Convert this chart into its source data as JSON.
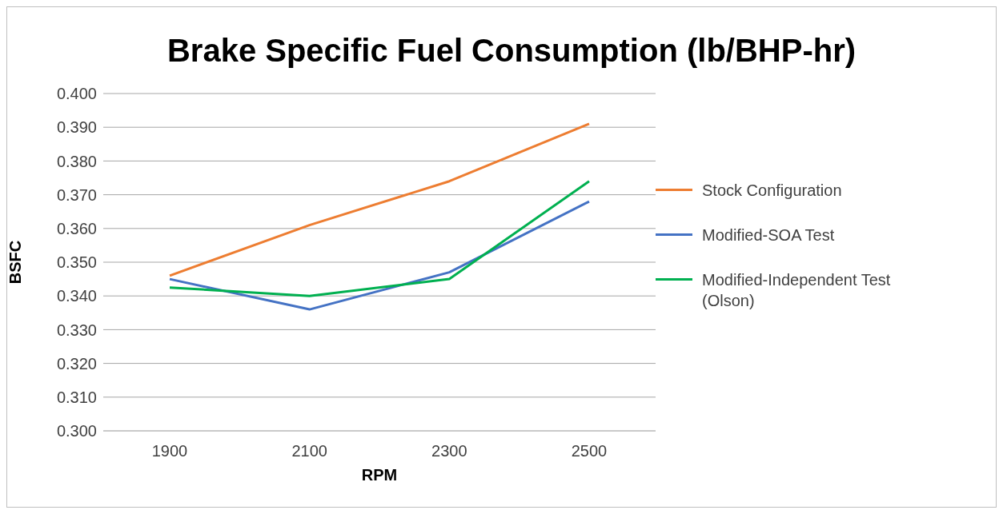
{
  "chart_data": {
    "type": "line",
    "title": "Brake Specific Fuel Consumption (lb/BHP-hr)",
    "xlabel": "RPM",
    "ylabel": "BSFC",
    "categories": [
      "1900",
      "2100",
      "2300",
      "2500"
    ],
    "series": [
      {
        "name": "Stock Configuration",
        "color": "#ed7d31",
        "values": [
          0.346,
          0.361,
          0.374,
          0.391
        ]
      },
      {
        "name": "Modified-SOA Test",
        "color": "#4472c4",
        "values": [
          0.345,
          0.336,
          0.347,
          0.368
        ]
      },
      {
        "name": "Modified-Independent Test (Olson)",
        "color": "#00b050",
        "values": [
          0.3425,
          0.34,
          0.345,
          0.374
        ]
      }
    ],
    "ylim": [
      0.3,
      0.4
    ],
    "yticks": [
      {
        "value": 0.3,
        "label": "0.300"
      },
      {
        "value": 0.31,
        "label": "0.310"
      },
      {
        "value": 0.32,
        "label": "0.320"
      },
      {
        "value": 0.33,
        "label": "0.330"
      },
      {
        "value": 0.34,
        "label": "0.340"
      },
      {
        "value": 0.35,
        "label": "0.350"
      },
      {
        "value": 0.36,
        "label": "0.360"
      },
      {
        "value": 0.37,
        "label": "0.370"
      },
      {
        "value": 0.38,
        "label": "0.380"
      },
      {
        "value": 0.39,
        "label": "0.390"
      },
      {
        "value": 0.4,
        "label": "0.400"
      }
    ],
    "grid": "y",
    "legend": "right",
    "marker": "none",
    "line_style": "solid"
  }
}
